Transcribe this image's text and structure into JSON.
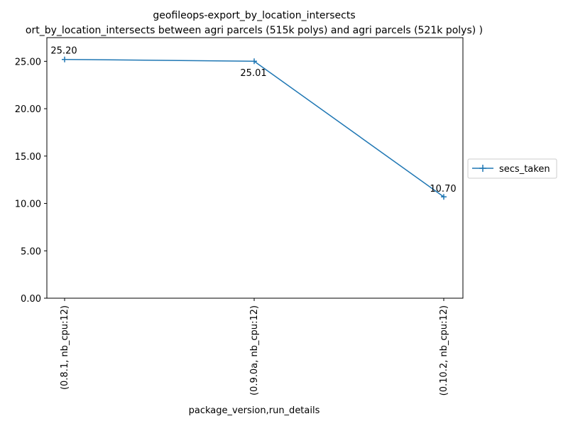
{
  "chart_data": {
    "type": "line",
    "title": "geofileops-export_by_location_intersects",
    "subtitle": "ort_by_location_intersects between agri parcels (515k polys) and agri parcels (521k polys) )",
    "xlabel": "package_version,run_details",
    "ylabel": "",
    "categories": [
      "(0.8.1, nb_cpu:12)",
      "(0.9.0a, nb_cpu:12)",
      "(0.10.2, nb_cpu:12)"
    ],
    "series": [
      {
        "name": "secs_taken",
        "values": [
          25.2,
          25.01,
          10.7
        ],
        "labels": [
          "25.20",
          "25.01",
          "10.70"
        ],
        "color": "#1f77b4",
        "marker": "plus"
      }
    ],
    "ylim": [
      0,
      27.5
    ],
    "yticks": [
      0,
      5,
      10,
      15,
      20,
      25
    ],
    "ytick_labels": [
      "0.00",
      "5.00",
      "10.00",
      "15.00",
      "20.00",
      "25.00"
    ],
    "grid": false,
    "legend_position": "outside-right"
  }
}
